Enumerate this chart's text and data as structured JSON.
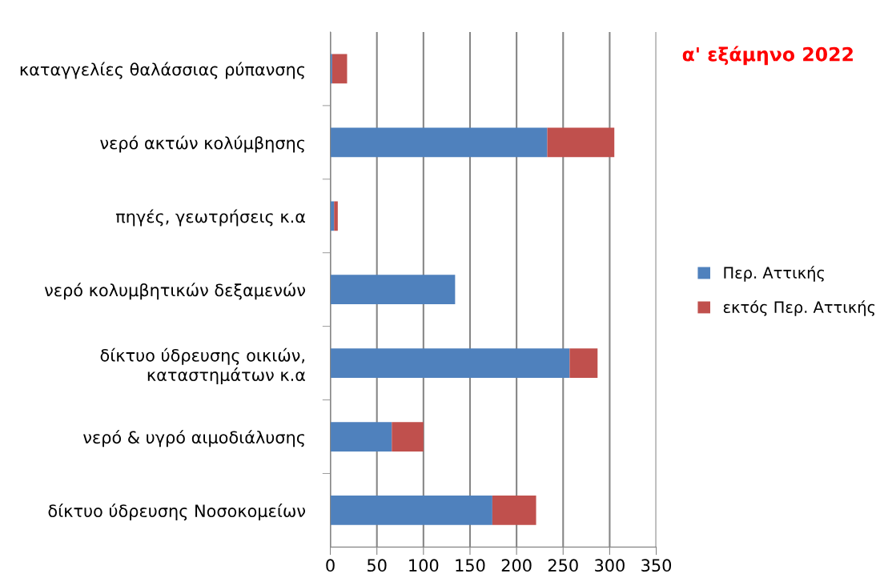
{
  "chart_data": {
    "type": "bar",
    "orientation": "horizontal",
    "stacked": true,
    "title": "α' εξάμηνο 2022",
    "categories": [
      "καταγγελίες θαλάσσιας ρύπανσης",
      "νερό ακτών κολύμβησης",
      "πηγές, γεωτρήσεις κ.α",
      "νερό κολυμβητικών δεξαμενών",
      "δίκτυο ύδρευσης οικιών,\nκαταστημάτων κ.α",
      "νερό & υγρό αιμοδιάλυσης",
      "δίκτυο ύδρευσης Νοσοκομείων"
    ],
    "series": [
      {
        "name": "Περ. Αττικής",
        "color": "#4f81bd",
        "values": [
          2,
          233,
          4,
          134,
          257,
          66,
          174
        ]
      },
      {
        "name": "εκτός Περ. Αττικής",
        "color": "#c0504d",
        "values": [
          16,
          72,
          4,
          null,
          30,
          34,
          47
        ]
      }
    ],
    "xlim": [
      0,
      350
    ],
    "xticks": [
      0,
      50,
      100,
      150,
      200,
      250,
      300,
      350
    ],
    "grid": "x",
    "legend": "right"
  }
}
